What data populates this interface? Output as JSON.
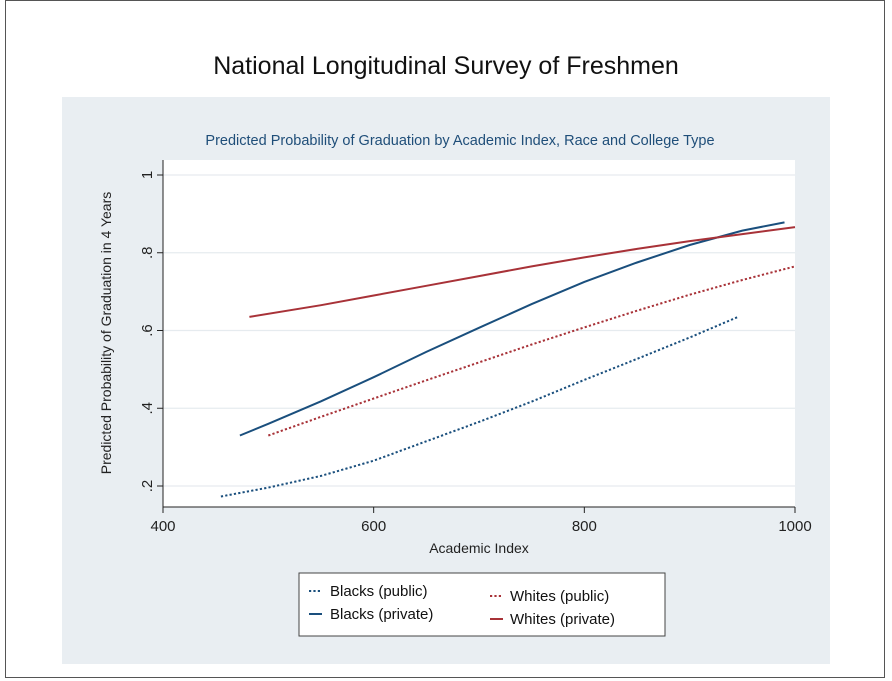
{
  "page": {
    "title": "National Longitudinal Survey of Freshmen"
  },
  "colors": {
    "panel_bg": "#e9eef2",
    "plot_bg": "#ffffff",
    "subtitle": "#1f4e79",
    "blue": "#1a4f7d",
    "red": "#a83238"
  },
  "chart_data": {
    "type": "line",
    "title": "Predicted Probability of Graduation by Academic Index, Race and College Type",
    "xlabel": "Academic Index",
    "ylabel": "Predicted Probability of Graduation in 4 Years",
    "xlim": [
      400,
      1000
    ],
    "ylim": [
      0.2,
      1.0
    ],
    "x_ticks": [
      400,
      600,
      800,
      1000
    ],
    "x_tick_labels": [
      "400",
      "600",
      "800",
      "1000"
    ],
    "y_ticks": [
      0.2,
      0.4,
      0.6,
      0.8,
      1.0
    ],
    "y_tick_labels": [
      ".2",
      ".4",
      ".6",
      ".8",
      "1"
    ],
    "grid": true,
    "legend_position": "bottom",
    "series": [
      {
        "name": "Blacks (public)",
        "style": "dotted",
        "color": "#1a4f7d",
        "points": [
          [
            455,
            0.173
          ],
          [
            500,
            0.196
          ],
          [
            550,
            0.226
          ],
          [
            600,
            0.265
          ],
          [
            650,
            0.315
          ],
          [
            700,
            0.365
          ],
          [
            750,
            0.417
          ],
          [
            800,
            0.473
          ],
          [
            850,
            0.527
          ],
          [
            900,
            0.582
          ],
          [
            945,
            0.634
          ]
        ]
      },
      {
        "name": "Blacks (private)",
        "style": "solid",
        "color": "#1a4f7d",
        "points": [
          [
            473,
            0.33
          ],
          [
            500,
            0.36
          ],
          [
            550,
            0.418
          ],
          [
            600,
            0.48
          ],
          [
            650,
            0.545
          ],
          [
            700,
            0.607
          ],
          [
            750,
            0.668
          ],
          [
            800,
            0.725
          ],
          [
            850,
            0.775
          ],
          [
            900,
            0.82
          ],
          [
            950,
            0.857
          ],
          [
            990,
            0.878
          ]
        ]
      },
      {
        "name": "Whites (public)",
        "style": "dotted",
        "color": "#a83238",
        "points": [
          [
            500,
            0.33
          ],
          [
            550,
            0.378
          ],
          [
            600,
            0.425
          ],
          [
            650,
            0.472
          ],
          [
            700,
            0.518
          ],
          [
            750,
            0.564
          ],
          [
            800,
            0.608
          ],
          [
            850,
            0.651
          ],
          [
            900,
            0.692
          ],
          [
            950,
            0.73
          ],
          [
            1000,
            0.765
          ]
        ]
      },
      {
        "name": "Whites (private)",
        "style": "solid",
        "color": "#a83238",
        "points": [
          [
            482,
            0.635
          ],
          [
            550,
            0.665
          ],
          [
            600,
            0.69
          ],
          [
            650,
            0.715
          ],
          [
            700,
            0.74
          ],
          [
            750,
            0.765
          ],
          [
            800,
            0.788
          ],
          [
            850,
            0.81
          ],
          [
            900,
            0.83
          ],
          [
            950,
            0.848
          ],
          [
            1000,
            0.866
          ]
        ]
      }
    ]
  }
}
